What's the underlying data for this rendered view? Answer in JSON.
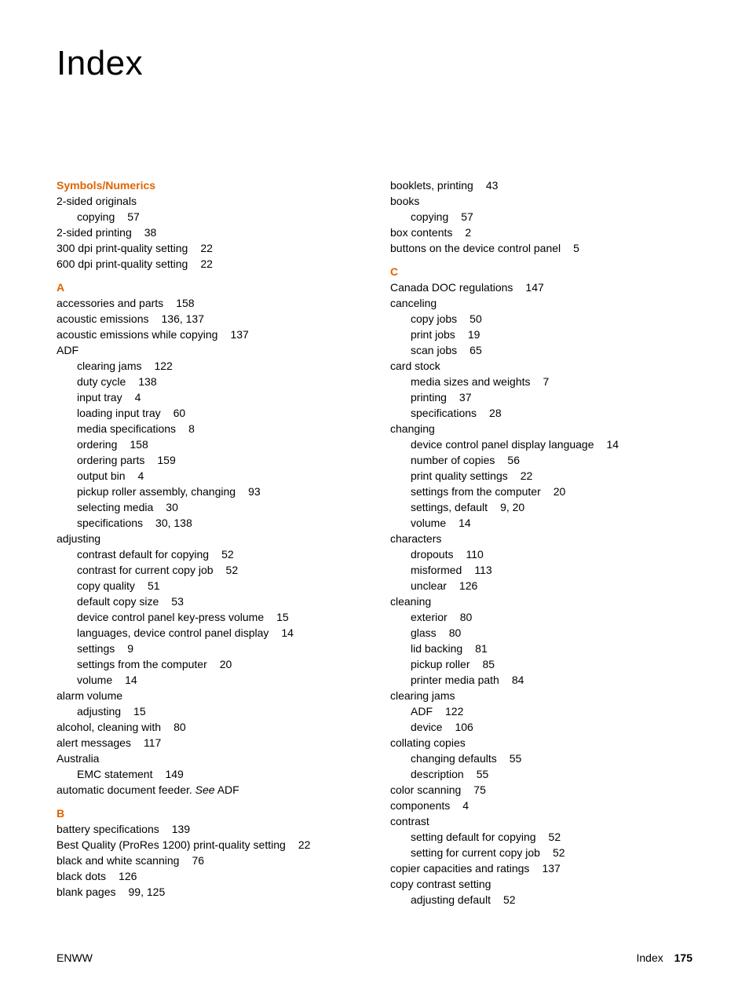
{
  "title": "Index",
  "accent_color": "#e06400",
  "footer": {
    "left": "ENWW",
    "label": "Index",
    "page": "175"
  },
  "left_col": [
    {
      "type": "heading",
      "text": "Symbols/Numerics"
    },
    {
      "type": "entry",
      "text": "2-sided originals"
    },
    {
      "type": "sub",
      "text": "copying",
      "page": "57"
    },
    {
      "type": "entry",
      "text": "2-sided printing",
      "page": "38"
    },
    {
      "type": "entry",
      "text": "300 dpi print-quality setting",
      "page": "22"
    },
    {
      "type": "entry",
      "text": "600 dpi print-quality setting",
      "page": "22"
    },
    {
      "type": "heading",
      "text": "A"
    },
    {
      "type": "entry",
      "text": "accessories and parts",
      "page": "158"
    },
    {
      "type": "entry",
      "text": "acoustic emissions",
      "page": "136, 137"
    },
    {
      "type": "entry",
      "text": "acoustic emissions while copying",
      "page": "137"
    },
    {
      "type": "entry",
      "text": "ADF"
    },
    {
      "type": "sub",
      "text": "clearing jams",
      "page": "122"
    },
    {
      "type": "sub",
      "text": "duty cycle",
      "page": "138"
    },
    {
      "type": "sub",
      "text": "input tray",
      "page": "4"
    },
    {
      "type": "sub",
      "text": "loading input tray",
      "page": "60"
    },
    {
      "type": "sub",
      "text": "media specifications",
      "page": "8"
    },
    {
      "type": "sub",
      "text": "ordering",
      "page": "158"
    },
    {
      "type": "sub",
      "text": "ordering parts",
      "page": "159"
    },
    {
      "type": "sub",
      "text": "output bin",
      "page": "4"
    },
    {
      "type": "sub",
      "text": "pickup roller assembly, changing",
      "page": "93"
    },
    {
      "type": "sub",
      "text": "selecting media",
      "page": "30"
    },
    {
      "type": "sub",
      "text": "specifications",
      "page": "30, 138"
    },
    {
      "type": "entry",
      "text": "adjusting"
    },
    {
      "type": "sub",
      "text": "contrast default for copying",
      "page": "52"
    },
    {
      "type": "sub",
      "text": "contrast for current copy job",
      "page": "52"
    },
    {
      "type": "sub",
      "text": "copy quality",
      "page": "51"
    },
    {
      "type": "sub",
      "text": "default copy size",
      "page": "53"
    },
    {
      "type": "sub",
      "text": "device control panel key-press volume",
      "page": "15"
    },
    {
      "type": "sub",
      "text": "languages, device control panel display",
      "page": "14"
    },
    {
      "type": "sub",
      "text": "settings",
      "page": "9"
    },
    {
      "type": "sub",
      "text": "settings from the computer",
      "page": "20"
    },
    {
      "type": "sub",
      "text": "volume",
      "page": "14"
    },
    {
      "type": "entry",
      "text": "alarm volume"
    },
    {
      "type": "sub",
      "text": "adjusting",
      "page": "15"
    },
    {
      "type": "entry",
      "text": "alcohol, cleaning with",
      "page": "80"
    },
    {
      "type": "entry",
      "text": "alert messages",
      "page": "117"
    },
    {
      "type": "entry",
      "text": "Australia"
    },
    {
      "type": "sub",
      "text": "EMC statement",
      "page": "149"
    },
    {
      "type": "entry_special",
      "pre": "automatic document feeder. ",
      "italic": "See",
      "post": " ADF"
    },
    {
      "type": "heading",
      "text": "B"
    },
    {
      "type": "entry",
      "text": "battery specifications",
      "page": "139"
    },
    {
      "type": "entry",
      "text": "Best Quality (ProRes 1200) print-quality setting",
      "page": "22"
    },
    {
      "type": "entry",
      "text": "black and white scanning",
      "page": "76"
    },
    {
      "type": "entry",
      "text": "black dots",
      "page": "126"
    },
    {
      "type": "entry",
      "text": "blank pages",
      "page": "99, 125"
    }
  ],
  "right_col": [
    {
      "type": "entry",
      "text": "booklets, printing",
      "page": "43"
    },
    {
      "type": "entry",
      "text": "books"
    },
    {
      "type": "sub",
      "text": "copying",
      "page": "57"
    },
    {
      "type": "entry",
      "text": "box contents",
      "page": "2"
    },
    {
      "type": "entry",
      "text": "buttons on the device control panel",
      "page": "5"
    },
    {
      "type": "heading",
      "text": "C"
    },
    {
      "type": "entry",
      "text": "Canada DOC regulations",
      "page": "147"
    },
    {
      "type": "entry",
      "text": "canceling"
    },
    {
      "type": "sub",
      "text": "copy jobs",
      "page": "50"
    },
    {
      "type": "sub",
      "text": "print jobs",
      "page": "19"
    },
    {
      "type": "sub",
      "text": "scan jobs",
      "page": "65"
    },
    {
      "type": "entry",
      "text": "card stock"
    },
    {
      "type": "sub",
      "text": "media sizes and weights",
      "page": "7"
    },
    {
      "type": "sub",
      "text": "printing",
      "page": "37"
    },
    {
      "type": "sub",
      "text": "specifications",
      "page": "28"
    },
    {
      "type": "entry",
      "text": "changing"
    },
    {
      "type": "sub",
      "text": "device control panel display language",
      "page": "14"
    },
    {
      "type": "sub",
      "text": "number of copies",
      "page": "56"
    },
    {
      "type": "sub",
      "text": "print quality settings",
      "page": "22"
    },
    {
      "type": "sub",
      "text": "settings from the computer",
      "page": "20"
    },
    {
      "type": "sub",
      "text": "settings, default",
      "page": "9, 20"
    },
    {
      "type": "sub",
      "text": "volume",
      "page": "14"
    },
    {
      "type": "entry",
      "text": "characters"
    },
    {
      "type": "sub",
      "text": "dropouts",
      "page": "110"
    },
    {
      "type": "sub",
      "text": "misformed",
      "page": "113"
    },
    {
      "type": "sub",
      "text": "unclear",
      "page": "126"
    },
    {
      "type": "entry",
      "text": "cleaning"
    },
    {
      "type": "sub",
      "text": "exterior",
      "page": "80"
    },
    {
      "type": "sub",
      "text": "glass",
      "page": "80"
    },
    {
      "type": "sub",
      "text": "lid backing",
      "page": "81"
    },
    {
      "type": "sub",
      "text": "pickup roller",
      "page": "85"
    },
    {
      "type": "sub",
      "text": "printer media path",
      "page": "84"
    },
    {
      "type": "entry",
      "text": "clearing jams"
    },
    {
      "type": "sub",
      "text": "ADF",
      "page": "122"
    },
    {
      "type": "sub",
      "text": "device",
      "page": "106"
    },
    {
      "type": "entry",
      "text": "collating copies"
    },
    {
      "type": "sub",
      "text": "changing defaults",
      "page": "55"
    },
    {
      "type": "sub",
      "text": "description",
      "page": "55"
    },
    {
      "type": "entry",
      "text": "color scanning",
      "page": "75"
    },
    {
      "type": "entry",
      "text": "components",
      "page": "4"
    },
    {
      "type": "entry",
      "text": "contrast"
    },
    {
      "type": "sub",
      "text": "setting default for copying",
      "page": "52"
    },
    {
      "type": "sub",
      "text": "setting for current copy job",
      "page": "52"
    },
    {
      "type": "entry",
      "text": "copier capacities and ratings",
      "page": "137"
    },
    {
      "type": "entry",
      "text": "copy contrast setting"
    },
    {
      "type": "sub",
      "text": "adjusting default",
      "page": "52"
    }
  ]
}
